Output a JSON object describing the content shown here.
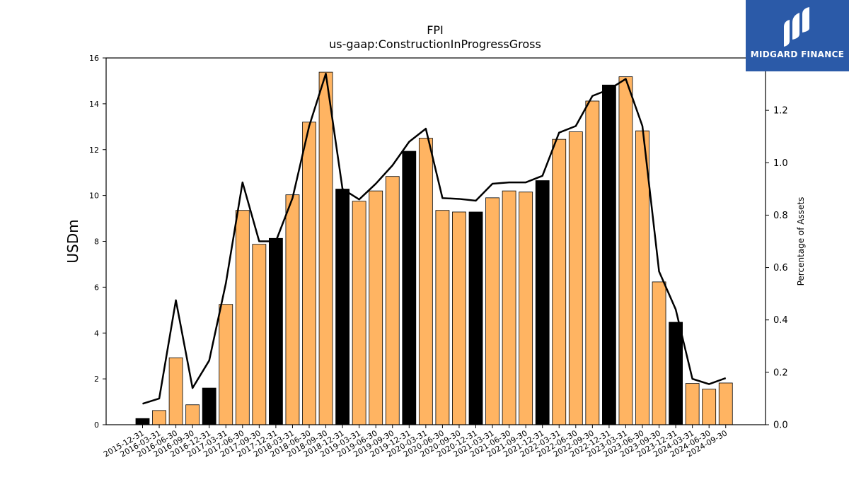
{
  "title": "FPI",
  "subtitle": "us-gaap:ConstructionInProgressGross",
  "logo": {
    "text": "MIDGARD FINANCE",
    "icon": "midgard-m-logo-icon",
    "color": "#2b5aa8"
  },
  "chart_data": {
    "type": "bar",
    "ylabel": "USDm",
    "y2label": "Percentage of Assets",
    "ylim": [
      0,
      16
    ],
    "y2lim": [
      0,
      1.4
    ],
    "yticks": [
      0,
      2,
      4,
      6,
      8,
      10,
      12,
      14,
      16
    ],
    "y2ticks": [
      "0.0",
      "0.2",
      "0.4",
      "0.6",
      "0.8",
      "1.0",
      "1.2"
    ],
    "categories": [
      "2015-12-31",
      "2016-03-31",
      "2016-06-30",
      "2016-09-30",
      "2016-12-31",
      "2017-03-31",
      "2017-06-30",
      "2017-09-30",
      "2017-12-31",
      "2018-03-31",
      "2018-06-30",
      "2018-09-30",
      "2018-12-31",
      "2019-03-31",
      "2019-06-30",
      "2019-09-30",
      "2019-12-31",
      "2020-03-31",
      "2020-06-30",
      "2020-09-30",
      "2020-12-31",
      "2021-03-31",
      "2021-06-30",
      "2021-09-30",
      "2021-12-31",
      "2022-03-31",
      "2022-06-30",
      "2022-09-30",
      "2022-12-31",
      "2023-03-31",
      "2023-06-30",
      "2023-09-30",
      "2023-12-31",
      "2024-03-31",
      "2024-06-30",
      "2024-09-30"
    ],
    "values": [
      0.27,
      0.62,
      2.92,
      0.87,
      1.6,
      5.25,
      9.35,
      7.87,
      8.13,
      10.03,
      13.2,
      15.38,
      10.28,
      9.75,
      10.2,
      10.83,
      11.93,
      12.5,
      9.35,
      9.28,
      9.28,
      9.9,
      10.2,
      10.15,
      10.65,
      12.45,
      12.78,
      14.12,
      14.82,
      15.18,
      12.82,
      6.23,
      4.47,
      1.8,
      1.55,
      1.82
    ],
    "colors": [
      "#000000",
      "#ffb462",
      "#ffb462",
      "#ffb462",
      "#000000",
      "#ffb462",
      "#ffb462",
      "#ffb462",
      "#000000",
      "#ffb462",
      "#ffb462",
      "#ffb462",
      "#000000",
      "#ffb462",
      "#ffb462",
      "#ffb462",
      "#000000",
      "#ffb462",
      "#ffb462",
      "#ffb462",
      "#000000",
      "#ffb462",
      "#ffb462",
      "#ffb462",
      "#000000",
      "#ffb462",
      "#ffb462",
      "#ffb462",
      "#000000",
      "#ffb462",
      "#ffb462",
      "#ffb462",
      "#000000",
      "#ffb462",
      "#ffb462",
      "#ffb462"
    ],
    "line_values": [
      0.08,
      0.1,
      0.475,
      0.14,
      0.245,
      0.54,
      0.925,
      0.7,
      0.7,
      0.865,
      1.14,
      1.34,
      0.9,
      0.86,
      0.92,
      0.99,
      1.08,
      1.13,
      0.865,
      0.862,
      0.855,
      0.92,
      0.925,
      0.925,
      0.95,
      1.115,
      1.14,
      1.255,
      1.28,
      1.32,
      1.14,
      0.585,
      0.44,
      0.175,
      0.155,
      0.178
    ],
    "line_color": "#000000",
    "grid": false,
    "legend": "none"
  }
}
